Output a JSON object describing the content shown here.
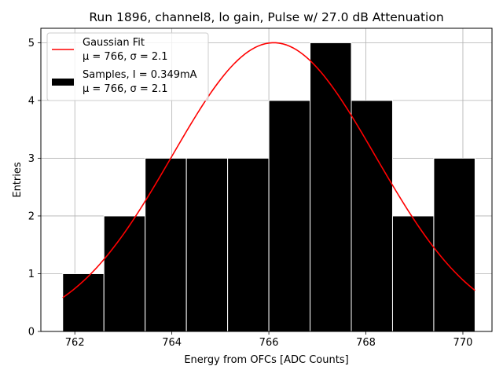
{
  "chart_data": {
    "type": "bar",
    "title": "Run 1896, channel8, lo gain, Pulse w/ 27.0 dB Attenuation",
    "xlabel": "Energy from OFCs [ADC Counts]",
    "ylabel": "Entries",
    "xlim": [
      761.3,
      770.6
    ],
    "ylim": [
      0,
      5.25
    ],
    "x_ticks": [
      762,
      764,
      766,
      768,
      770
    ],
    "y_ticks": [
      0,
      1,
      2,
      3,
      4,
      5
    ],
    "grid": true,
    "legend_position": "top-left",
    "bins": [
      {
        "left": 761.75,
        "right": 762.6,
        "count": 1
      },
      {
        "left": 762.6,
        "right": 763.45,
        "count": 2
      },
      {
        "left": 763.45,
        "right": 764.3,
        "count": 3
      },
      {
        "left": 764.3,
        "right": 765.15,
        "count": 3
      },
      {
        "left": 765.15,
        "right": 766.0,
        "count": 3
      },
      {
        "left": 766.0,
        "right": 766.85,
        "count": 4
      },
      {
        "left": 766.85,
        "right": 767.7,
        "count": 5
      },
      {
        "left": 767.7,
        "right": 768.55,
        "count": 4
      },
      {
        "left": 768.55,
        "right": 769.4,
        "count": 2
      },
      {
        "left": 769.4,
        "right": 770.25,
        "count": 3
      }
    ],
    "fit": {
      "type": "gaussian",
      "amplitude": 5.0,
      "mean": 766.1,
      "sigma": 2.1,
      "x_start": 761.75,
      "x_end": 770.25,
      "color": "#ff0000"
    },
    "legend": [
      {
        "name": "gaussian-fit",
        "line1": "Gaussian Fit",
        "line2": "μ = 766, σ = 2.1",
        "color": "#ff0000"
      },
      {
        "name": "samples",
        "line1": "Samples, I = 0.349mA",
        "line2": "μ = 766, σ = 2.1",
        "color": "#000000"
      }
    ]
  }
}
